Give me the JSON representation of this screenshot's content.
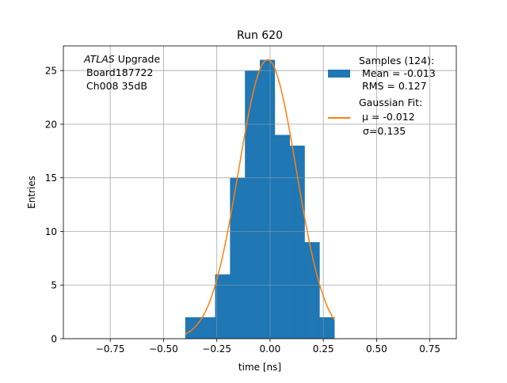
{
  "chart_data": {
    "type": "bar",
    "title": "Run 620",
    "xlabel": "time [ns]",
    "ylabel": "Entries",
    "xlim": [
      -0.97,
      0.874
    ],
    "ylim": [
      0,
      27.3
    ],
    "grid": true,
    "xticks": [
      -0.75,
      -0.5,
      -0.25,
      0.0,
      0.25,
      0.5,
      0.75
    ],
    "xtick_labels": [
      "−0.75",
      "−0.50",
      "−0.25",
      "0.00",
      "0.25",
      "0.50",
      "0.75"
    ],
    "yticks": [
      0,
      5,
      10,
      15,
      20,
      25
    ],
    "ytick_labels": [
      "0",
      "5",
      "10",
      "15",
      "20",
      "25"
    ],
    "bin_edges": [
      -0.398,
      -0.328,
      -0.258,
      -0.188,
      -0.118,
      -0.048,
      0.022,
      0.092,
      0.162,
      0.232,
      0.302
    ],
    "counts": [
      2,
      2,
      6,
      15,
      25,
      26,
      19,
      18,
      9,
      2
    ],
    "fit": {
      "type": "gaussian",
      "amplitude": 26,
      "mu": -0.012,
      "sigma": 0.135,
      "range": [
        -0.398,
        0.302
      ]
    },
    "colors": {
      "hist": "#1f77b4",
      "fit": "#ff7f0e",
      "grid": "#b0b0b0"
    },
    "annotation": {
      "italic": "ATLAS",
      "line1_rest": " Upgrade",
      "line2": "Board187722",
      "line3": "Ch008 35dB"
    },
    "legend": {
      "placement": "top-right",
      "hist_lines": [
        "Samples (124):",
        "Mean = -0.013",
        "RMS = 0.127"
      ],
      "fit_lines": [
        "Gaussian Fit:",
        "μ = -0.012",
        "σ=0.135"
      ]
    }
  }
}
